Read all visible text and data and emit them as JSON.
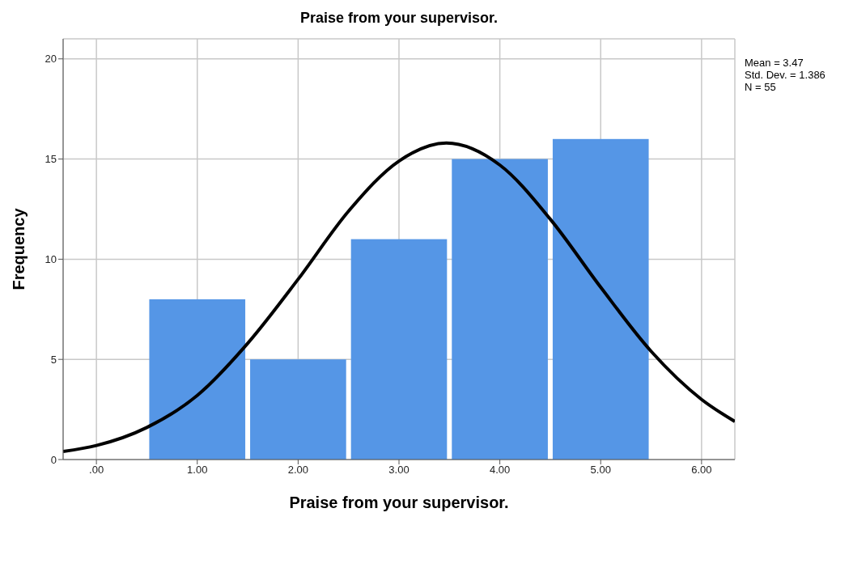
{
  "chart_data": {
    "type": "histogram",
    "title": "Praise from your supervisor.",
    "xlabel": "Praise from your supervisor.",
    "ylabel": "Frequency",
    "bins": [
      0.5,
      1.5,
      2.5,
      3.5,
      4.5,
      5.5
    ],
    "values": [
      8,
      5,
      11,
      15,
      16
    ],
    "color": "#5596e6",
    "series": [
      {
        "type": "line",
        "color": "#000000",
        "x": [
          -0.33,
          0,
          0.5,
          1,
          1.5,
          2,
          2.5,
          3,
          3.47,
          4,
          4.5,
          5,
          5.5,
          6,
          6.33
        ],
        "values": [
          0.4,
          0.7,
          1.6,
          3.2,
          5.8,
          9.0,
          12.4,
          14.9,
          15.8,
          14.7,
          12.0,
          8.6,
          5.4,
          3.0,
          1.9
        ]
      }
    ],
    "xlim": [
      -0.33,
      6.33
    ],
    "xticks": [
      {
        "value": 0,
        "label": ".00"
      },
      {
        "value": 1,
        "label": "1.00"
      },
      {
        "value": 2,
        "label": "2.00"
      },
      {
        "value": 3,
        "label": "3.00"
      },
      {
        "value": 4,
        "label": "4.00"
      },
      {
        "value": 5,
        "label": "5.00"
      },
      {
        "value": 6,
        "label": "6.00"
      }
    ],
    "ylim": [
      0,
      21
    ],
    "yticks": [
      0,
      5,
      10,
      15,
      20
    ],
    "grid": true,
    "marker": "none",
    "line_style": "solid",
    "annotations": [
      "Mean = 3.47",
      "Std. Dev. = 1.386",
      "N = 55"
    ]
  }
}
